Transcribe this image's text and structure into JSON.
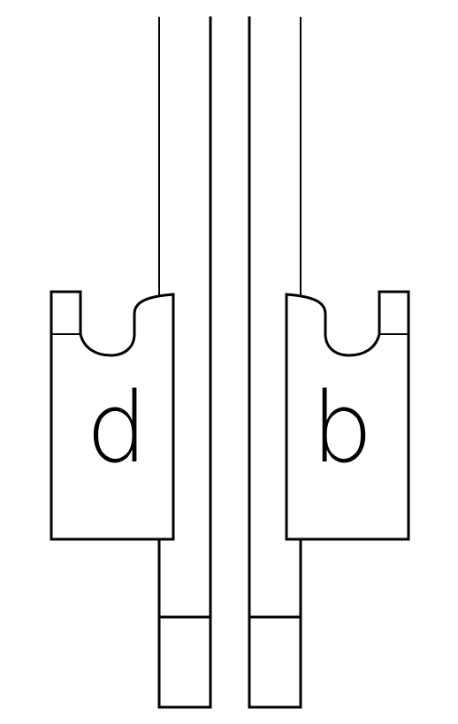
{
  "colors": {
    "background": "#ffffff",
    "stroke": "#000000"
  },
  "labels": {
    "left_block": "d",
    "right_block": "b"
  }
}
